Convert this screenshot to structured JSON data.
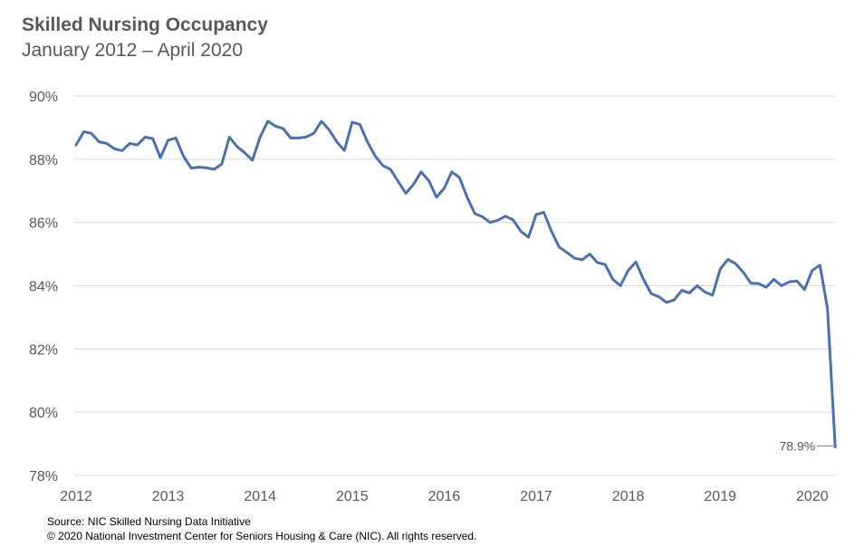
{
  "title": "Skilled Nursing Occupancy",
  "subtitle": "January 2012 – April 2020",
  "source_line1": "Source: NIC Skilled Nursing Data Initiative",
  "source_line2": "© 2020 National Investment Center for Seniors Housing & Care (NIC). All rights reserved.",
  "colors": {
    "line": "#4a72b0",
    "grid": "#d9d9d9",
    "text": "#595959"
  },
  "chart_data": {
    "type": "line",
    "title": "Skilled Nursing Occupancy",
    "subtitle": "January 2012 – April 2020",
    "xlabel": "",
    "ylabel": "",
    "ylim": [
      78,
      90
    ],
    "yticks": [
      78,
      80,
      82,
      84,
      86,
      88,
      90
    ],
    "ytick_labels": [
      "78%",
      "80%",
      "82%",
      "84%",
      "86%",
      "88%",
      "90%"
    ],
    "xticks": [
      2012,
      2013,
      2014,
      2015,
      2016,
      2017,
      2018,
      2019,
      2020
    ],
    "xtick_labels": [
      "2012",
      "2013",
      "2014",
      "2015",
      "2016",
      "2017",
      "2018",
      "2019",
      "2020"
    ],
    "grid": true,
    "frequency": "monthly",
    "x_start": "2012-01",
    "x_end": "2020-04",
    "annotation": {
      "label": "78.9%",
      "x_index": 99
    },
    "series": [
      {
        "values": [
          88.45,
          88.87,
          88.82,
          88.55,
          88.5,
          88.33,
          88.27,
          88.5,
          88.45,
          88.7,
          88.65,
          88.05,
          88.6,
          88.67,
          88.1,
          87.72,
          87.75,
          87.73,
          87.68,
          87.85,
          88.7,
          88.4,
          88.2,
          87.97,
          88.7,
          89.2,
          89.05,
          88.97,
          88.67,
          88.67,
          88.7,
          88.82,
          89.2,
          88.93,
          88.55,
          88.28,
          89.17,
          89.1,
          88.55,
          88.1,
          87.8,
          87.68,
          87.3,
          86.92,
          87.2,
          87.6,
          87.32,
          86.8,
          87.08,
          87.6,
          87.42,
          86.8,
          86.28,
          86.18,
          86.0,
          86.07,
          86.2,
          86.08,
          85.72,
          85.53,
          86.25,
          86.32,
          85.72,
          85.22,
          85.05,
          84.87,
          84.82,
          85.0,
          84.73,
          84.67,
          84.2,
          84.0,
          84.48,
          84.75,
          84.2,
          83.75,
          83.65,
          83.47,
          83.55,
          83.85,
          83.77,
          84.0,
          83.8,
          83.7,
          84.52,
          84.83,
          84.7,
          84.43,
          84.08,
          84.07,
          83.95,
          84.2,
          84.0,
          84.12,
          84.15,
          83.88,
          84.48,
          84.65,
          83.28,
          78.9
        ]
      }
    ]
  }
}
